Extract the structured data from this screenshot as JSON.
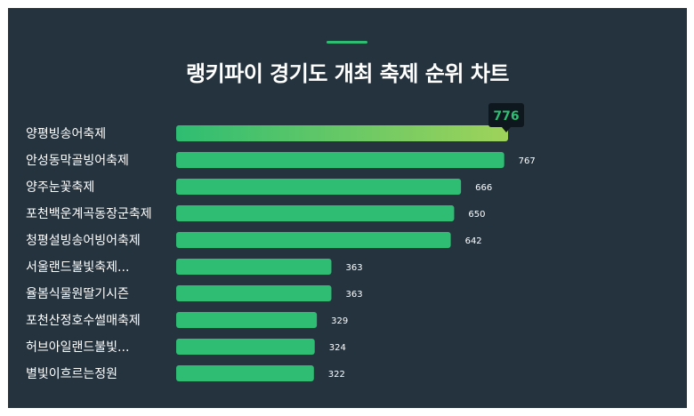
{
  "title": "랭키파이 경기도 개최 축제 순위 차트",
  "colors": {
    "background": "#25333f",
    "bar": "#2ebd72",
    "bar_highlight_end": "#9fd35a",
    "tooltip_bg": "#0f171e",
    "text": "#ffffff"
  },
  "chart_data": {
    "type": "bar",
    "orientation": "horizontal",
    "categories": [
      "양평빙송어축제",
      "안성동막골빙어축제",
      "양주눈꽃축제",
      "포천백운계곡동장군축제",
      "청평설빙송어빙어축제",
      "서울랜드불빛축제...",
      "율봄식물원딸기시즌",
      "포천산정호수썰매축제",
      "허브아일랜드불빛...",
      "별빛이흐르는정원"
    ],
    "values": [
      776,
      767,
      666,
      650,
      642,
      363,
      363,
      329,
      324,
      322
    ],
    "highlight_index": 0,
    "tooltip_value": "776",
    "xlim": [
      0,
      776
    ],
    "grid": false,
    "legend": "none"
  }
}
